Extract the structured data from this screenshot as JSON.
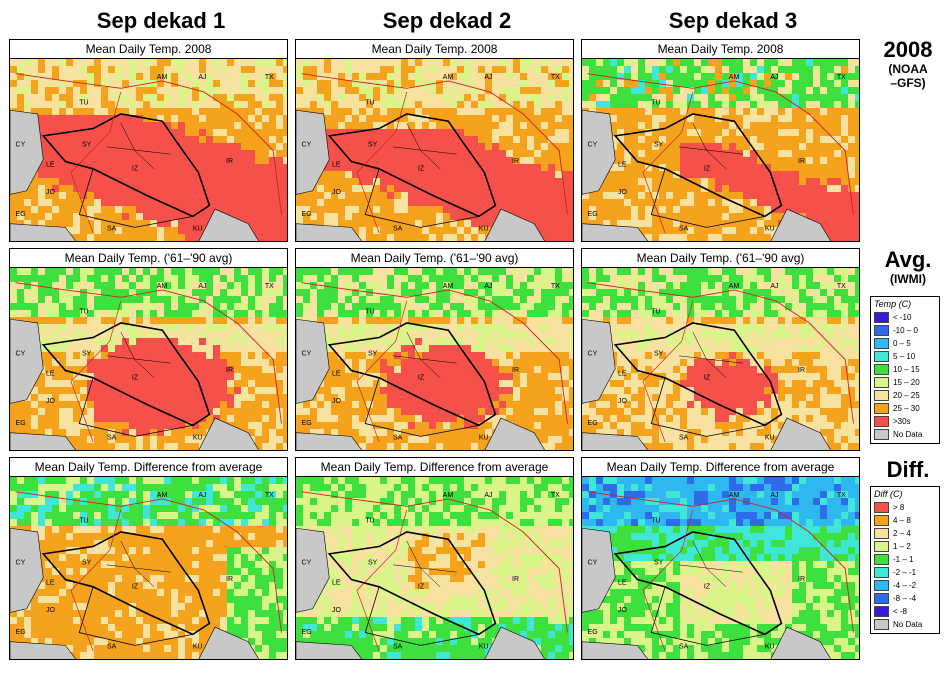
{
  "columns": [
    "Sep dekad 1",
    "Sep dekad 2",
    "Sep dekad 3"
  ],
  "rows": [
    {
      "label": "2008",
      "sub": "(NOAA\n–GFS)",
      "panel_title": "Mean Daily Temp. 2008"
    },
    {
      "label": "Avg.",
      "sub": "(IWMI)",
      "panel_title": "Mean Daily Temp. ('61–'90 avg)"
    },
    {
      "label": "Diff.",
      "sub": "",
      "panel_title": "Mean Daily Temp. Difference from average"
    }
  ],
  "country_labels": [
    "AM",
    "AJ",
    "TX",
    "TU",
    "CY",
    "SY",
    "LE",
    "IZ",
    "IR",
    "JO",
    "EG",
    "SA",
    "KU"
  ],
  "temp_legend": {
    "title": "Temp (C)",
    "items": [
      {
        "label": "< -10",
        "color": "#3a1ad8"
      },
      {
        "label": "-10 – 0",
        "color": "#2f6ae8"
      },
      {
        "label": "0 – 5",
        "color": "#2fb8f0"
      },
      {
        "label": "5 – 10",
        "color": "#40e6d8"
      },
      {
        "label": "10 – 15",
        "color": "#3ee03e"
      },
      {
        "label": "15 – 20",
        "color": "#d9f58a"
      },
      {
        "label": "20 – 25",
        "color": "#f8e2a0"
      },
      {
        "label": "25 – 30",
        "color": "#f5a21c"
      },
      {
        "label": ">30s",
        "color": "#f5504a"
      },
      {
        "label": "No Data",
        "color": "#c8c8c8"
      }
    ]
  },
  "diff_legend": {
    "title": "Diff (C)",
    "items": [
      {
        "label": "> 8",
        "color": "#f5504a"
      },
      {
        "label": "4 – 8",
        "color": "#f5a21c"
      },
      {
        "label": "2 – 4",
        "color": "#f8e2a0"
      },
      {
        "label": "1 – 2",
        "color": "#d9f58a"
      },
      {
        "label": "-1 – 1",
        "color": "#3ee03e"
      },
      {
        "label": "-2 – -1",
        "color": "#40e6d8"
      },
      {
        "label": "-4 – -2",
        "color": "#2fb8f0"
      },
      {
        "label": "-8 – -4",
        "color": "#2f6ae8"
      },
      {
        "label": "< -8",
        "color": "#3a1ad8"
      },
      {
        "label": "No Data",
        "color": "#c8c8c8"
      }
    ]
  },
  "colors": {
    "red": "#f5504a",
    "orange": "#f5a21c",
    "peach": "#f8e2a0",
    "lime": "#d9f58a",
    "green": "#3ee03e",
    "cyan": "#40e6d8",
    "sky": "#2fb8f0",
    "blue": "#2f6ae8",
    "nodata": "#c8c8c8",
    "water": "#c8c8c8"
  }
}
